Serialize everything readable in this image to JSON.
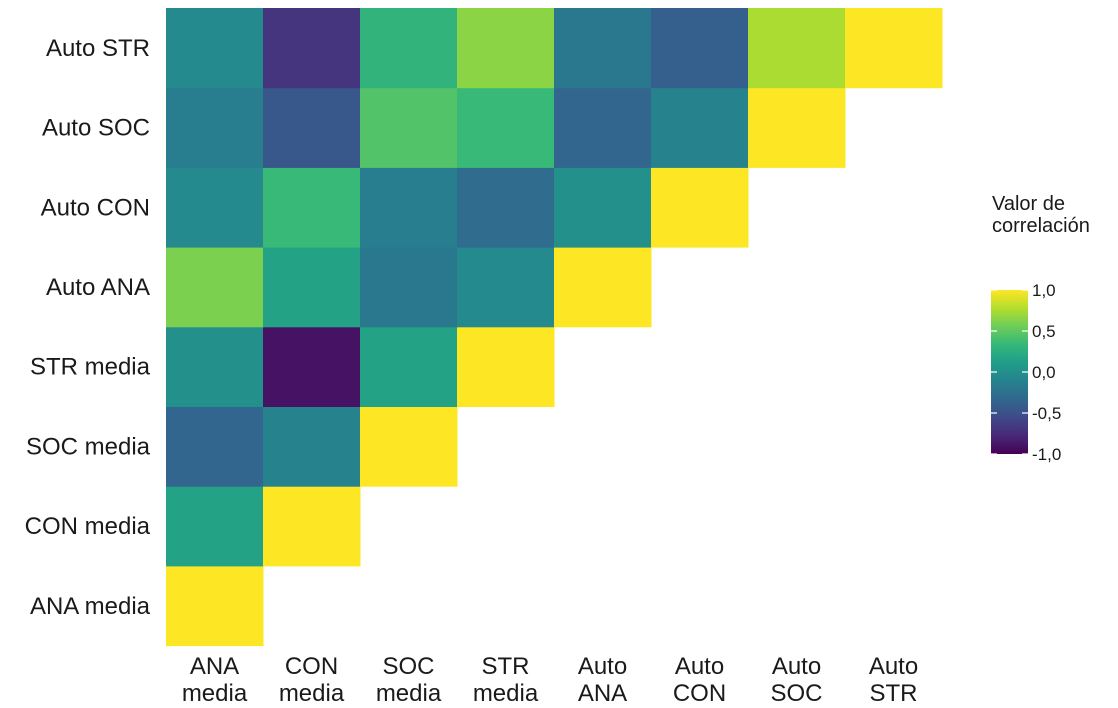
{
  "chart_data": {
    "type": "heatmap",
    "x_labels": [
      [
        "ANA",
        "media"
      ],
      [
        "CON",
        "media"
      ],
      [
        "SOC",
        "media"
      ],
      [
        "STR",
        "media"
      ],
      [
        "Auto",
        "ANA"
      ],
      [
        "Auto",
        "CON"
      ],
      [
        "Auto",
        "SOC"
      ],
      [
        "Auto",
        "STR"
      ]
    ],
    "y_labels": [
      "ANA media",
      "CON media",
      "SOC media",
      "STR media",
      "Auto ANA",
      "Auto CON",
      "Auto SOC",
      "Auto STR"
    ],
    "values": [
      [
        1.0,
        null,
        null,
        null,
        null,
        null,
        null,
        null
      ],
      [
        0.15,
        1.0,
        null,
        null,
        null,
        null,
        null,
        null
      ],
      [
        -0.35,
        -0.1,
        1.0,
        null,
        null,
        null,
        null,
        null
      ],
      [
        0.0,
        -0.9,
        0.15,
        1.0,
        null,
        null,
        null,
        null
      ],
      [
        0.6,
        0.15,
        -0.2,
        -0.05,
        1.0,
        null,
        null,
        null
      ],
      [
        -0.05,
        0.35,
        -0.15,
        -0.3,
        0.0,
        1.0,
        null,
        null
      ],
      [
        -0.15,
        -0.45,
        0.45,
        0.35,
        -0.35,
        -0.1,
        1.0,
        null
      ],
      [
        -0.05,
        -0.7,
        0.3,
        0.65,
        -0.2,
        -0.4,
        0.75,
        1.0
      ]
    ],
    "legend": {
      "title": [
        "Valor de",
        "correlación"
      ],
      "ticks": [
        {
          "value": 1.0,
          "label": "1,0"
        },
        {
          "value": 0.5,
          "label": "0,5"
        },
        {
          "value": 0.0,
          "label": "0,0"
        },
        {
          "value": -0.5,
          "label": "-0,5"
        },
        {
          "value": -1.0,
          "label": "-1,0"
        }
      ],
      "range": [
        -1.0,
        1.0
      ],
      "colormap": "viridis",
      "placement": "right"
    }
  }
}
